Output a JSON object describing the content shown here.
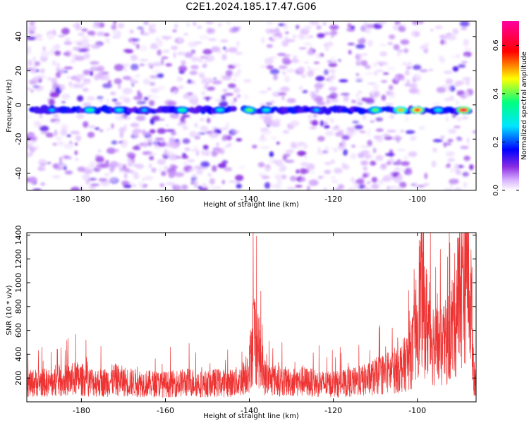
{
  "figure_title": "C2E1.2024.185.17.47.G06",
  "colors": {
    "snr_line": "#ee3333",
    "colormap": [
      "#ffffff",
      "#d9b3ff",
      "#8a2be2",
      "#0000ff",
      "#00e5ff",
      "#00ff80",
      "#ffff00",
      "#ff0000",
      "#ff00a0"
    ]
  },
  "chart_data": [
    {
      "type": "heatmap",
      "xlabel": "Height of straight line (km)",
      "ylabel": "Frequency (Hz)",
      "xlim": [
        -193,
        -86
      ],
      "ylim": [
        -50,
        49
      ],
      "xticks": [
        -180,
        -160,
        -140,
        -120,
        -100
      ],
      "yticks": [
        -40,
        -20,
        0,
        20,
        40
      ],
      "colorbar": {
        "label": "Normalized spectral amplitude",
        "range": [
          0.0,
          0.7
        ],
        "ticks": [
          0.0,
          0.2,
          0.4,
          0.6
        ]
      },
      "band": {
        "center_frequency": -3,
        "hotspots": [
          {
            "x": -187,
            "value": 0.25
          },
          {
            "x": -178,
            "value": 0.35
          },
          {
            "x": -171,
            "value": 0.3
          },
          {
            "x": -165,
            "value": 0.25
          },
          {
            "x": -156,
            "value": 0.35
          },
          {
            "x": -147,
            "value": 0.3
          },
          {
            "x": -140,
            "value": 0.4
          },
          {
            "x": -136,
            "value": 0.3
          },
          {
            "x": -124,
            "value": 0.25
          },
          {
            "x": -110,
            "value": 0.4
          },
          {
            "x": -104,
            "value": 0.5
          },
          {
            "x": -100,
            "value": 0.6
          },
          {
            "x": -95,
            "value": 0.3
          },
          {
            "x": -89,
            "value": 0.65
          }
        ]
      },
      "grid": false
    },
    {
      "type": "line",
      "xlabel": "Height of straight line (km)",
      "ylabel": "SNR (10 * v/v)",
      "xlim": [
        -193,
        -86
      ],
      "ylim": [
        0,
        1420
      ],
      "xticks": [
        -180,
        -160,
        -140,
        -120,
        -100
      ],
      "yticks": [
        200,
        400,
        600,
        800,
        1000,
        1200,
        1400
      ],
      "series": [
        {
          "x": [
            -193,
            -190,
            -187,
            -184,
            -181,
            -178,
            -175,
            -172,
            -169,
            -166,
            -163,
            -160,
            -157,
            -154,
            -151,
            -148,
            -145,
            -142,
            -140,
            -139,
            -138,
            -137,
            -136,
            -133,
            -130,
            -127,
            -124,
            -121,
            -118,
            -115,
            -112,
            -109,
            -106,
            -103,
            -101,
            -99,
            -98,
            -96,
            -94,
            -92,
            -90,
            -89,
            -88,
            -87,
            -86.5
          ],
          "values": [
            150,
            170,
            160,
            180,
            200,
            175,
            165,
            190,
            170,
            160,
            155,
            150,
            160,
            170,
            150,
            165,
            160,
            180,
            300,
            600,
            500,
            250,
            200,
            180,
            170,
            175,
            160,
            150,
            155,
            170,
            190,
            230,
            260,
            320,
            450,
            1000,
            700,
            500,
            450,
            600,
            900,
            1150,
            1350,
            700,
            200
          ]
        }
      ],
      "grid": false
    }
  ]
}
